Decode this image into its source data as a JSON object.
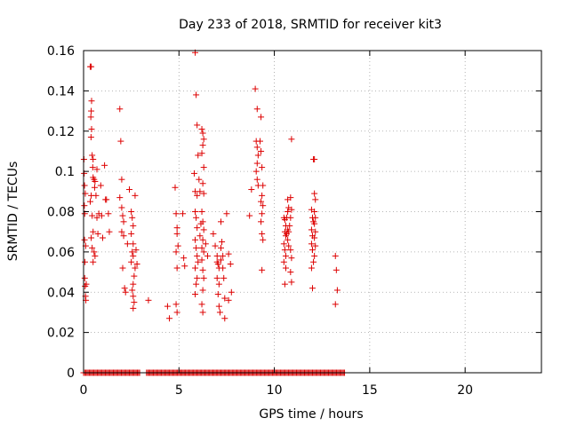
{
  "chart_data": {
    "type": "scatter",
    "title": "Day 233 of 2018, SRMTID for receiver kit3",
    "xlabel": "GPS time / hours",
    "ylabel": "SRMTID / TECUs",
    "xlim": [
      0,
      24
    ],
    "ylim": [
      0,
      0.16
    ],
    "x_ticks": [
      0,
      5,
      10,
      15,
      20
    ],
    "y_ticks": [
      0,
      0.02,
      0.04,
      0.06,
      0.08,
      0.1,
      0.12,
      0.14,
      0.16
    ],
    "x_tick_labels": [
      "0",
      "5",
      "10",
      "15",
      "20"
    ],
    "y_tick_labels": [
      "0",
      "0.02",
      "0.04",
      "0.06",
      "0.08",
      "0.1",
      "0.12",
      "0.14",
      "0.16"
    ],
    "grid": true,
    "marker": "+",
    "color": "#dd0000",
    "series": [
      {
        "points": [
          [
            0.02,
            0.106
          ],
          [
            0.03,
            0.099
          ],
          [
            0.05,
            0.093
          ],
          [
            0.04,
            0.083
          ],
          [
            0.06,
            0.079
          ],
          [
            0.05,
            0.066
          ],
          [
            0.07,
            0.055
          ],
          [
            0.06,
            0.047
          ],
          [
            0.08,
            0.043
          ],
          [
            0.1,
            0.038
          ],
          [
            0.12,
            0.036
          ],
          [
            0.09,
            0.089
          ],
          [
            0.11,
            0.063
          ],
          [
            0.14,
            0.044
          ],
          [
            0.35,
            0.152
          ],
          [
            0.4,
            0.152
          ],
          [
            0.42,
            0.135
          ],
          [
            0.4,
            0.13
          ],
          [
            0.38,
            0.127
          ],
          [
            0.42,
            0.121
          ],
          [
            0.39,
            0.117
          ],
          [
            0.45,
            0.108
          ],
          [
            0.5,
            0.106
          ],
          [
            0.48,
            0.102
          ],
          [
            0.5,
            0.097
          ],
          [
            0.55,
            0.096
          ],
          [
            0.6,
            0.095
          ],
          [
            0.58,
            0.092
          ],
          [
            0.4,
            0.088
          ],
          [
            0.35,
            0.085
          ],
          [
            0.45,
            0.078
          ],
          [
            0.5,
            0.07
          ],
          [
            0.4,
            0.067
          ],
          [
            0.45,
            0.062
          ],
          [
            0.55,
            0.06
          ],
          [
            0.6,
            0.058
          ],
          [
            0.5,
            0.055
          ],
          [
            0.65,
            0.088
          ],
          [
            0.7,
            0.077
          ],
          [
            0.7,
            0.101
          ],
          [
            0.75,
            0.069
          ],
          [
            0.8,
            0.079
          ],
          [
            0.9,
            0.093
          ],
          [
            0.95,
            0.078
          ],
          [
            1.0,
            0.067
          ],
          [
            1.1,
            0.103
          ],
          [
            1.15,
            0.086
          ],
          [
            1.2,
            0.086
          ],
          [
            1.3,
            0.079
          ],
          [
            1.35,
            0.07
          ],
          [
            1.9,
            0.131
          ],
          [
            1.95,
            0.115
          ],
          [
            2.0,
            0.096
          ],
          [
            1.9,
            0.087
          ],
          [
            2.0,
            0.082
          ],
          [
            2.05,
            0.078
          ],
          [
            2.1,
            0.075
          ],
          [
            2.0,
            0.07
          ],
          [
            2.1,
            0.068
          ],
          [
            2.05,
            0.052
          ],
          [
            2.15,
            0.042
          ],
          [
            2.2,
            0.04
          ],
          [
            2.3,
            0.064
          ],
          [
            2.4,
            0.091
          ],
          [
            2.5,
            0.08
          ],
          [
            2.55,
            0.077
          ],
          [
            2.6,
            0.073
          ],
          [
            2.5,
            0.069
          ],
          [
            2.6,
            0.064
          ],
          [
            2.55,
            0.06
          ],
          [
            2.6,
            0.058
          ],
          [
            2.5,
            0.055
          ],
          [
            2.7,
            0.052
          ],
          [
            2.65,
            0.048
          ],
          [
            2.6,
            0.044
          ],
          [
            2.55,
            0.041
          ],
          [
            2.6,
            0.038
          ],
          [
            2.65,
            0.035
          ],
          [
            2.6,
            0.032
          ],
          [
            2.7,
            0.088
          ],
          [
            2.75,
            0.061
          ],
          [
            2.8,
            0.054
          ],
          [
            3.4,
            0.036
          ],
          [
            4.4,
            0.033
          ],
          [
            4.5,
            0.027
          ],
          [
            4.8,
            0.092
          ],
          [
            4.85,
            0.079
          ],
          [
            4.9,
            0.072
          ],
          [
            4.9,
            0.069
          ],
          [
            4.95,
            0.063
          ],
          [
            4.85,
            0.06
          ],
          [
            4.9,
            0.052
          ],
          [
            4.85,
            0.034
          ],
          [
            4.9,
            0.03
          ],
          [
            5.2,
            0.079
          ],
          [
            5.25,
            0.057
          ],
          [
            5.3,
            0.053
          ],
          [
            5.85,
            0.159
          ],
          [
            5.9,
            0.138
          ],
          [
            5.95,
            0.123
          ],
          [
            6.0,
            0.108
          ],
          [
            5.8,
            0.099
          ],
          [
            5.85,
            0.09
          ],
          [
            5.95,
            0.088
          ],
          [
            5.85,
            0.08
          ],
          [
            5.9,
            0.077
          ],
          [
            5.95,
            0.072
          ],
          [
            5.85,
            0.066
          ],
          [
            5.9,
            0.062
          ],
          [
            5.95,
            0.058
          ],
          [
            6.0,
            0.055
          ],
          [
            5.85,
            0.052
          ],
          [
            5.95,
            0.047
          ],
          [
            5.9,
            0.044
          ],
          [
            5.85,
            0.039
          ],
          [
            6.05,
            0.096
          ],
          [
            6.1,
            0.09
          ],
          [
            6.15,
            0.074
          ],
          [
            6.1,
            0.068
          ],
          [
            6.2,
            0.062
          ],
          [
            6.2,
            0.121
          ],
          [
            6.25,
            0.119
          ],
          [
            6.3,
            0.116
          ],
          [
            6.25,
            0.113
          ],
          [
            6.2,
            0.109
          ],
          [
            6.3,
            0.102
          ],
          [
            6.25,
            0.094
          ],
          [
            6.3,
            0.089
          ],
          [
            6.2,
            0.08
          ],
          [
            6.25,
            0.075
          ],
          [
            6.3,
            0.071
          ],
          [
            6.25,
            0.066
          ],
          [
            6.3,
            0.06
          ],
          [
            6.2,
            0.056
          ],
          [
            6.25,
            0.051
          ],
          [
            6.3,
            0.047
          ],
          [
            6.25,
            0.041
          ],
          [
            6.2,
            0.034
          ],
          [
            6.25,
            0.03
          ],
          [
            6.4,
            0.064
          ],
          [
            6.5,
            0.058
          ],
          [
            6.8,
            0.069
          ],
          [
            6.9,
            0.063
          ],
          [
            7.0,
            0.058
          ],
          [
            7.05,
            0.054
          ],
          [
            7.1,
            0.052
          ],
          [
            7.0,
            0.047
          ],
          [
            7.1,
            0.044
          ],
          [
            7.05,
            0.039
          ],
          [
            7.1,
            0.033
          ],
          [
            7.15,
            0.03
          ],
          [
            7.0,
            0.055
          ],
          [
            7.2,
            0.062
          ],
          [
            7.2,
            0.056
          ],
          [
            7.25,
            0.065
          ],
          [
            7.3,
            0.058
          ],
          [
            7.3,
            0.052
          ],
          [
            7.35,
            0.047
          ],
          [
            7.2,
            0.075
          ],
          [
            7.4,
            0.037
          ],
          [
            7.4,
            0.027
          ],
          [
            7.5,
            0.079
          ],
          [
            7.6,
            0.059
          ],
          [
            7.7,
            0.054
          ],
          [
            7.75,
            0.04
          ],
          [
            7.6,
            0.036
          ],
          [
            8.7,
            0.078
          ],
          [
            8.8,
            0.091
          ],
          [
            9.0,
            0.141
          ],
          [
            9.1,
            0.131
          ],
          [
            9.05,
            0.115
          ],
          [
            9.1,
            0.112
          ],
          [
            9.15,
            0.108
          ],
          [
            9.1,
            0.104
          ],
          [
            9.05,
            0.1
          ],
          [
            9.1,
            0.096
          ],
          [
            9.15,
            0.093
          ],
          [
            9.3,
            0.127
          ],
          [
            9.25,
            0.115
          ],
          [
            9.3,
            0.11
          ],
          [
            9.35,
            0.102
          ],
          [
            9.4,
            0.093
          ],
          [
            9.35,
            0.088
          ],
          [
            9.3,
            0.085
          ],
          [
            9.4,
            0.083
          ],
          [
            9.35,
            0.079
          ],
          [
            9.3,
            0.075
          ],
          [
            9.35,
            0.069
          ],
          [
            9.4,
            0.066
          ],
          [
            9.35,
            0.051
          ],
          [
            10.5,
            0.077
          ],
          [
            10.55,
            0.076
          ],
          [
            10.6,
            0.073
          ],
          [
            10.55,
            0.07
          ],
          [
            10.6,
            0.068
          ],
          [
            10.5,
            0.064
          ],
          [
            10.55,
            0.061
          ],
          [
            10.6,
            0.058
          ],
          [
            10.5,
            0.055
          ],
          [
            10.6,
            0.052
          ],
          [
            10.55,
            0.044
          ],
          [
            10.7,
            0.086
          ],
          [
            10.75,
            0.082
          ],
          [
            10.7,
            0.08
          ],
          [
            10.65,
            0.077
          ],
          [
            10.7,
            0.071
          ],
          [
            10.75,
            0.07
          ],
          [
            10.65,
            0.069
          ],
          [
            10.7,
            0.066
          ],
          [
            10.75,
            0.063
          ],
          [
            10.9,
            0.116
          ],
          [
            10.85,
            0.087
          ],
          [
            10.9,
            0.081
          ],
          [
            10.85,
            0.077
          ],
          [
            10.8,
            0.073
          ],
          [
            10.85,
            0.061
          ],
          [
            10.9,
            0.057
          ],
          [
            10.85,
            0.05
          ],
          [
            10.9,
            0.045
          ],
          [
            11.95,
            0.081
          ],
          [
            12.0,
            0.077
          ],
          [
            12.05,
            0.075
          ],
          [
            11.95,
            0.071
          ],
          [
            12.0,
            0.068
          ],
          [
            11.95,
            0.064
          ],
          [
            12.0,
            0.061
          ],
          [
            12.05,
            0.055
          ],
          [
            11.95,
            0.052
          ],
          [
            12.0,
            0.042
          ],
          [
            12.05,
            0.106
          ],
          [
            12.1,
            0.106
          ],
          [
            12.1,
            0.089
          ],
          [
            12.15,
            0.086
          ],
          [
            12.1,
            0.08
          ],
          [
            12.15,
            0.077
          ],
          [
            12.1,
            0.074
          ],
          [
            12.15,
            0.07
          ],
          [
            12.1,
            0.067
          ],
          [
            12.15,
            0.063
          ],
          [
            12.1,
            0.058
          ],
          [
            13.2,
            0.058
          ],
          [
            13.25,
            0.051
          ],
          [
            13.3,
            0.041
          ],
          [
            13.2,
            0.034
          ]
        ]
      }
    ],
    "zero_band": [
      0,
      13.7
    ]
  }
}
